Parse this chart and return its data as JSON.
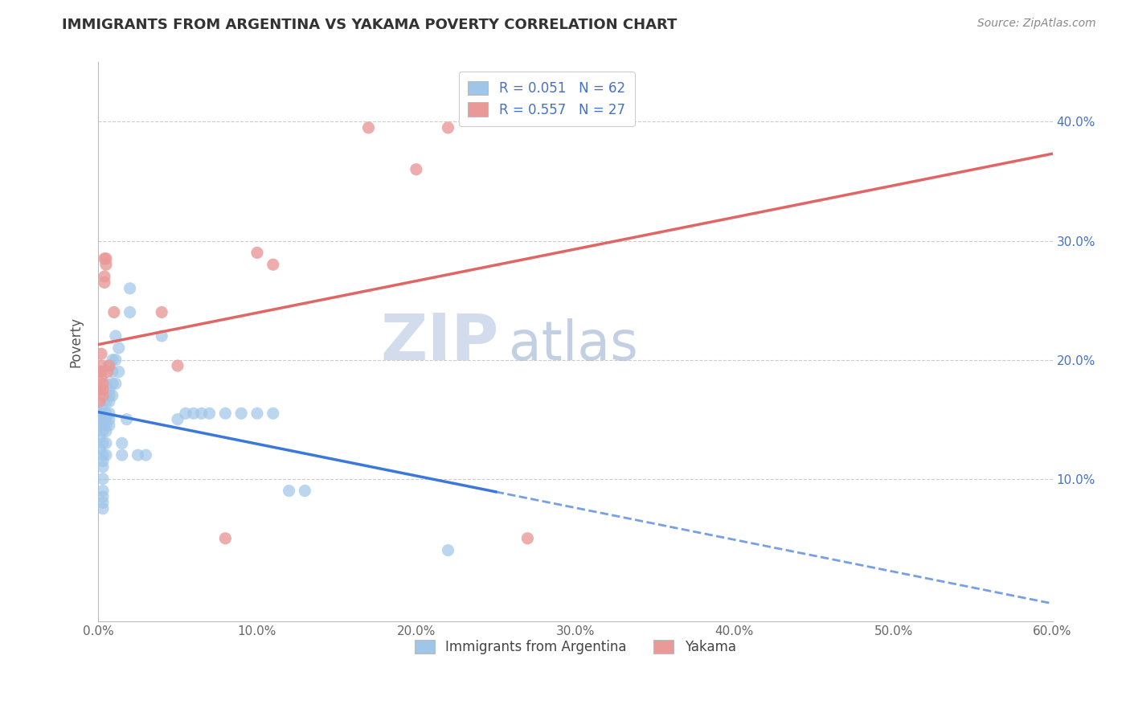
{
  "title": "IMMIGRANTS FROM ARGENTINA VS YAKAMA POVERTY CORRELATION CHART",
  "source": "Source: ZipAtlas.com",
  "xlabel": "",
  "ylabel": "Poverty",
  "xlim": [
    0.0,
    0.6
  ],
  "ylim": [
    -0.02,
    0.45
  ],
  "xtick_vals": [
    0.0,
    0.1,
    0.2,
    0.3,
    0.4,
    0.5,
    0.6
  ],
  "xtick_labels": [
    "0.0%",
    "10.0%",
    "20.0%",
    "30.0%",
    "40.0%",
    "50.0%",
    "60.0%"
  ],
  "ytick_vals": [
    0.1,
    0.2,
    0.3,
    0.4
  ],
  "ytick_labels_right": [
    "10.0%",
    "20.0%",
    "30.0%",
    "40.0%"
  ],
  "legend_label1": "Immigrants from Argentina",
  "legend_label2": "Yakama",
  "r1": 0.051,
  "n1": 62,
  "r2": 0.557,
  "n2": 27,
  "watermark_zip": "ZIP",
  "watermark_atlas": "atlas",
  "blue_color": "#9fc5e8",
  "pink_color": "#ea9999",
  "blue_line_color": "#3c78d8",
  "pink_line_color": "#e06666",
  "blue_line_solid_end": 0.25,
  "argentina_points": [
    [
      0.001,
      0.155
    ],
    [
      0.001,
      0.145
    ],
    [
      0.001,
      0.135
    ],
    [
      0.001,
      0.125
    ],
    [
      0.002,
      0.16
    ],
    [
      0.002,
      0.155
    ],
    [
      0.002,
      0.15
    ],
    [
      0.002,
      0.145
    ],
    [
      0.003,
      0.14
    ],
    [
      0.003,
      0.13
    ],
    [
      0.003,
      0.12
    ],
    [
      0.003,
      0.115
    ],
    [
      0.003,
      0.11
    ],
    [
      0.003,
      0.1
    ],
    [
      0.003,
      0.09
    ],
    [
      0.003,
      0.085
    ],
    [
      0.003,
      0.08
    ],
    [
      0.003,
      0.075
    ],
    [
      0.005,
      0.18
    ],
    [
      0.005,
      0.165
    ],
    [
      0.005,
      0.155
    ],
    [
      0.005,
      0.15
    ],
    [
      0.005,
      0.145
    ],
    [
      0.005,
      0.14
    ],
    [
      0.005,
      0.13
    ],
    [
      0.005,
      0.12
    ],
    [
      0.007,
      0.195
    ],
    [
      0.007,
      0.175
    ],
    [
      0.007,
      0.17
    ],
    [
      0.007,
      0.165
    ],
    [
      0.007,
      0.155
    ],
    [
      0.007,
      0.15
    ],
    [
      0.007,
      0.145
    ],
    [
      0.009,
      0.2
    ],
    [
      0.009,
      0.19
    ],
    [
      0.009,
      0.18
    ],
    [
      0.009,
      0.17
    ],
    [
      0.011,
      0.22
    ],
    [
      0.011,
      0.2
    ],
    [
      0.011,
      0.18
    ],
    [
      0.013,
      0.21
    ],
    [
      0.013,
      0.19
    ],
    [
      0.015,
      0.13
    ],
    [
      0.015,
      0.12
    ],
    [
      0.018,
      0.15
    ],
    [
      0.02,
      0.24
    ],
    [
      0.02,
      0.26
    ],
    [
      0.025,
      0.12
    ],
    [
      0.03,
      0.12
    ],
    [
      0.04,
      0.22
    ],
    [
      0.05,
      0.15
    ],
    [
      0.055,
      0.155
    ],
    [
      0.06,
      0.155
    ],
    [
      0.065,
      0.155
    ],
    [
      0.07,
      0.155
    ],
    [
      0.08,
      0.155
    ],
    [
      0.09,
      0.155
    ],
    [
      0.1,
      0.155
    ],
    [
      0.11,
      0.155
    ],
    [
      0.12,
      0.09
    ],
    [
      0.13,
      0.09
    ],
    [
      0.22,
      0.04
    ]
  ],
  "yakama_points": [
    [
      0.001,
      0.19
    ],
    [
      0.001,
      0.175
    ],
    [
      0.001,
      0.165
    ],
    [
      0.002,
      0.205
    ],
    [
      0.002,
      0.195
    ],
    [
      0.002,
      0.19
    ],
    [
      0.002,
      0.185
    ],
    [
      0.003,
      0.18
    ],
    [
      0.003,
      0.175
    ],
    [
      0.003,
      0.17
    ],
    [
      0.004,
      0.285
    ],
    [
      0.004,
      0.27
    ],
    [
      0.004,
      0.265
    ],
    [
      0.005,
      0.285
    ],
    [
      0.005,
      0.28
    ],
    [
      0.006,
      0.19
    ],
    [
      0.007,
      0.195
    ],
    [
      0.01,
      0.24
    ],
    [
      0.04,
      0.24
    ],
    [
      0.05,
      0.195
    ],
    [
      0.08,
      0.05
    ],
    [
      0.1,
      0.29
    ],
    [
      0.11,
      0.28
    ],
    [
      0.17,
      0.395
    ],
    [
      0.2,
      0.36
    ],
    [
      0.22,
      0.395
    ],
    [
      0.27,
      0.05
    ]
  ]
}
